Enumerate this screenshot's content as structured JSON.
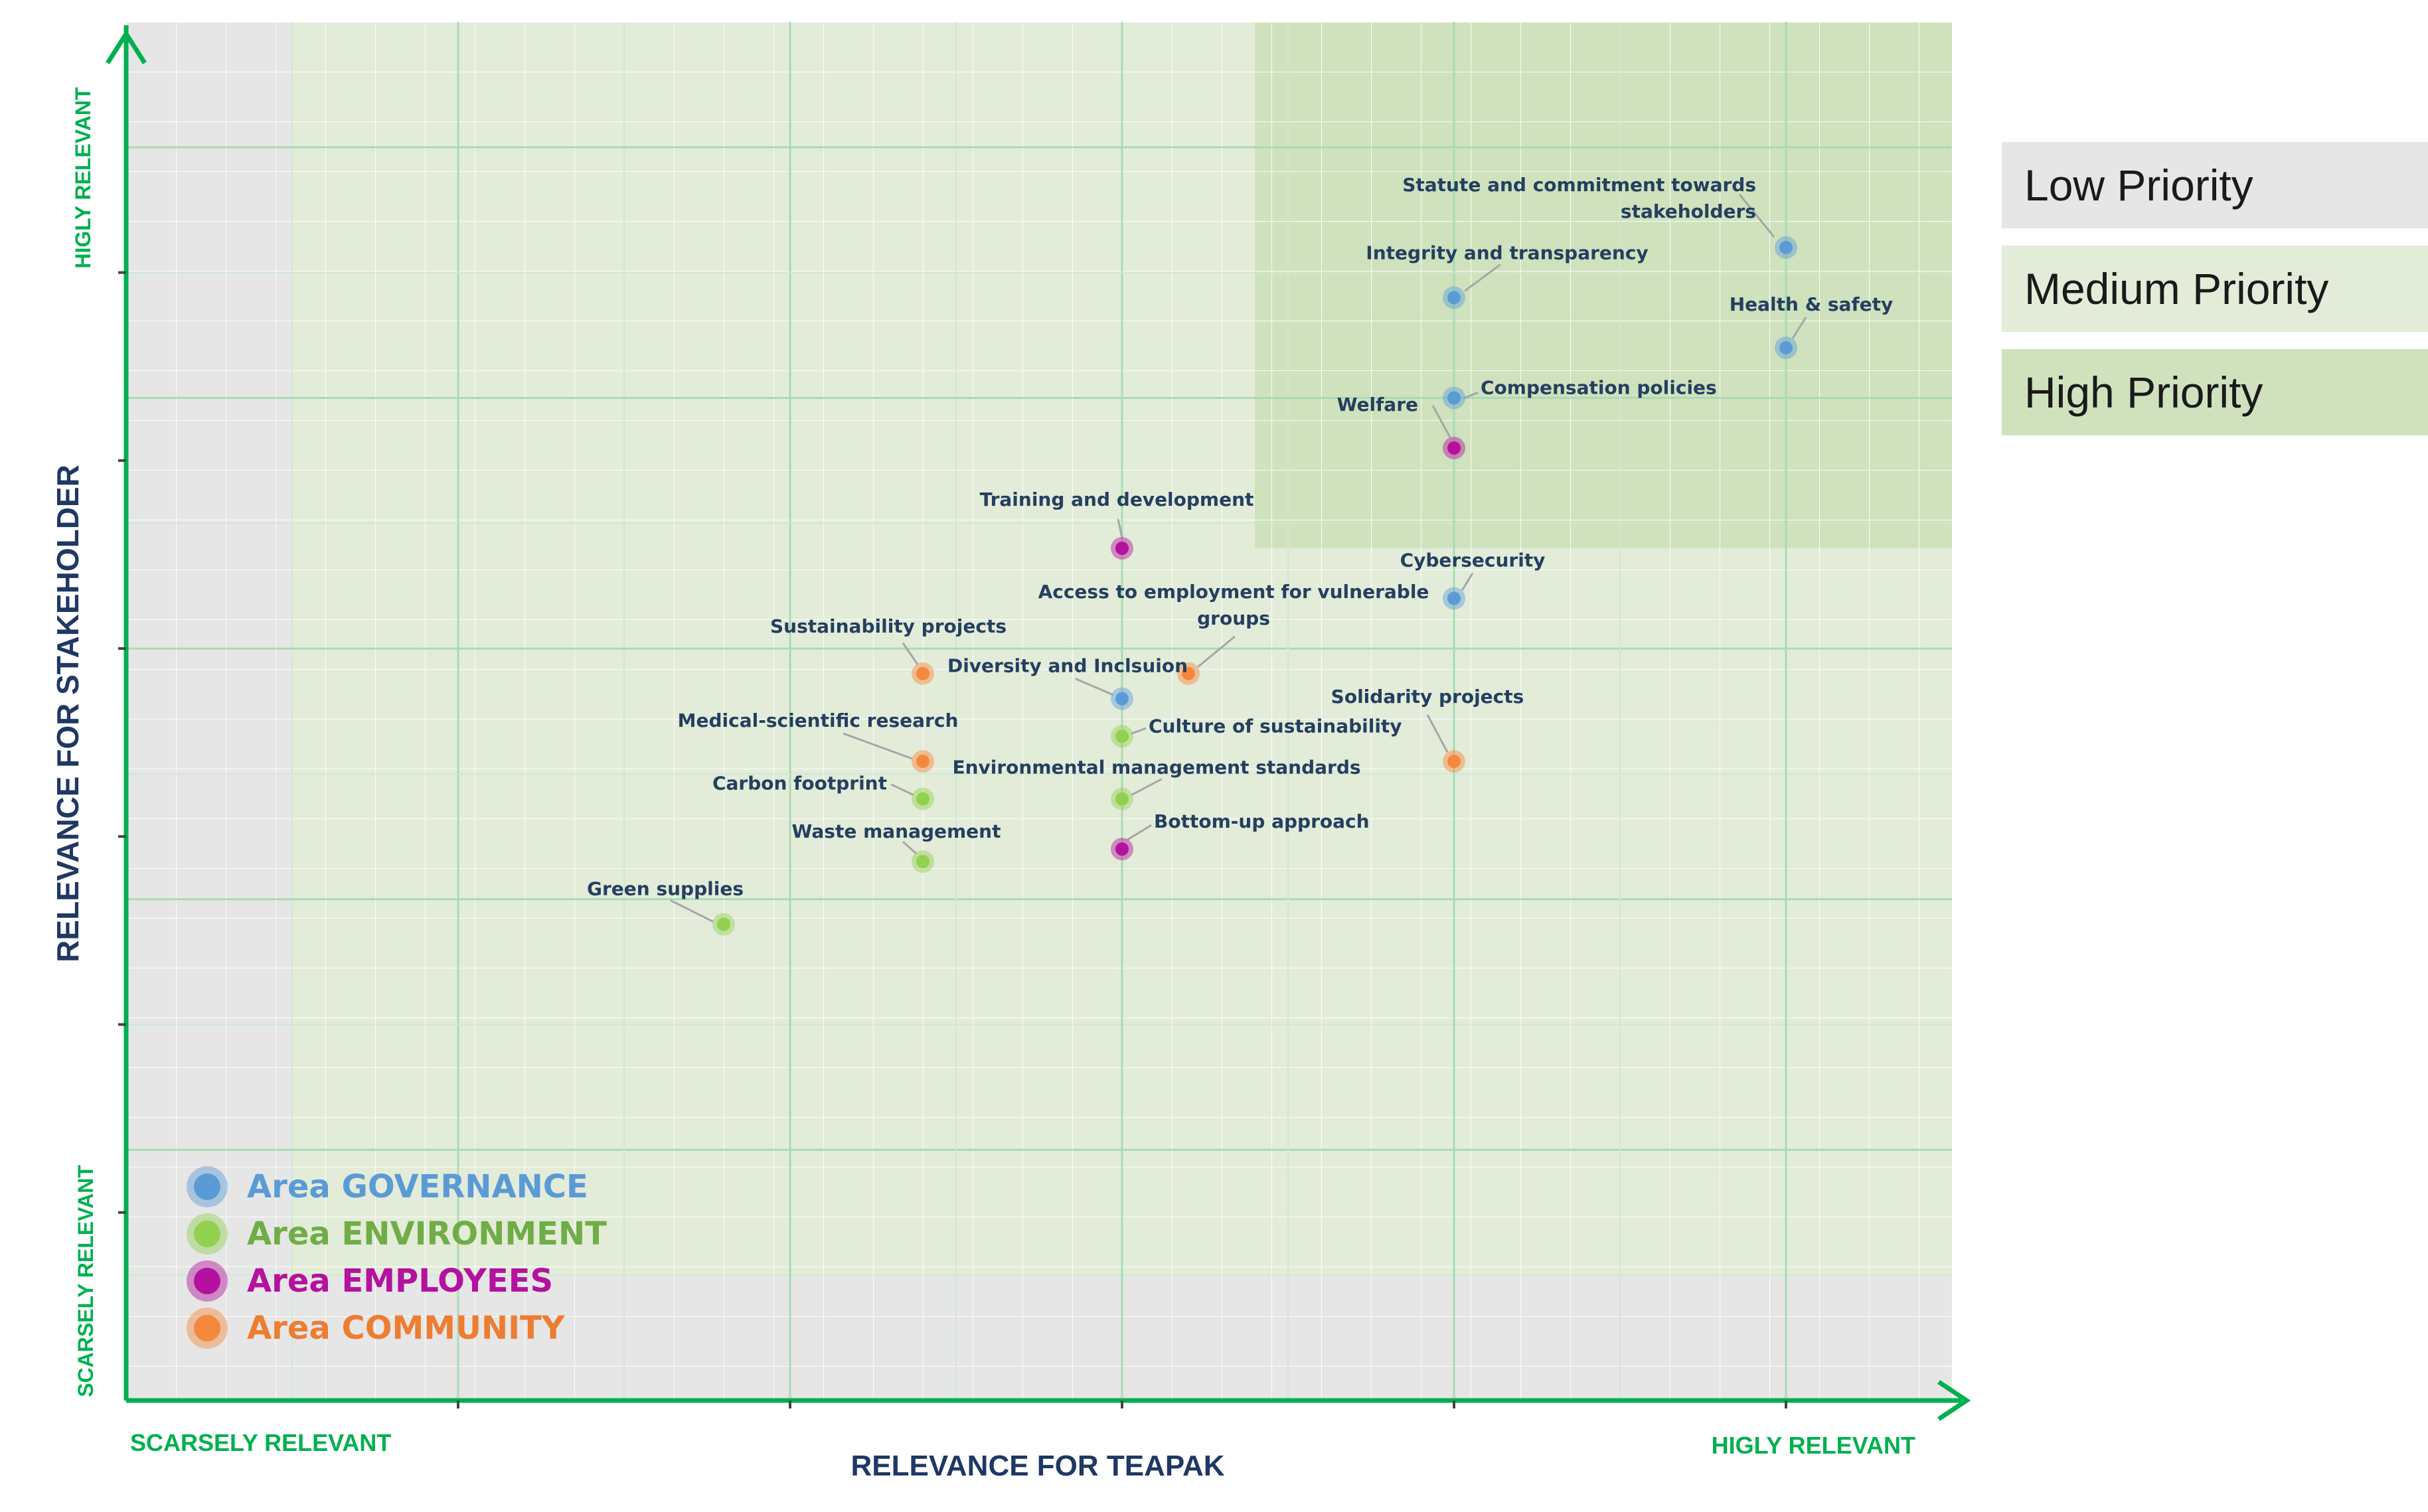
{
  "priority_legend": [
    {
      "label": "Low Priority",
      "color": "#e6e6e6"
    },
    {
      "label": "Medium Priority",
      "color": "#e3ecd9"
    },
    {
      "label": "High Priority",
      "color": "#cfe2bd"
    }
  ],
  "chart_data": {
    "type": "scatter",
    "title": "",
    "xlabel": "RELEVANCE FOR TEAPAK",
    "ylabel": "RELEVANCE FOR STAKEHOLDER",
    "x_low_label": "SCARSELY RELEVANT",
    "x_high_label": "HIGLY RELEVANT",
    "y_low_label": "SCARSELY RELEVANT",
    "y_high_label": "HIGLY RELEVANT",
    "xlim": [
      0,
      5.5
    ],
    "ylim": [
      0,
      5.5
    ],
    "grid": true,
    "legend": "bottom-left",
    "regions": [
      {
        "name": "Low Priority",
        "x": [
          0,
          5.5
        ],
        "y": [
          0,
          5.5
        ],
        "color": "#e6e6e6"
      },
      {
        "name": "Medium Priority",
        "x": [
          0.5,
          5.5
        ],
        "y": [
          0.5,
          5.5
        ],
        "color": "#e3ecd9"
      },
      {
        "name": "High Priority",
        "x": [
          3.4,
          5.5
        ],
        "y": [
          3.4,
          5.5
        ],
        "color": "#cfe2bd"
      }
    ],
    "areas": [
      {
        "name": "Area GOVERNANCE",
        "prefix": "Area ",
        "word": "GOVERNANCE",
        "color": "#5b9bd5",
        "text_color": "#5b9bd5"
      },
      {
        "name": "Area ENVIRONMENT",
        "prefix": "Area ",
        "word": "ENVIRONMENT",
        "color": "#92d050",
        "text_color": "#70ad47"
      },
      {
        "name": "Area EMPLOYEES",
        "prefix": "Area ",
        "word": "EMPLOYEES",
        "color": "#b4119e",
        "text_color": "#b4119e"
      },
      {
        "name": "Area COMMUNITY",
        "prefix": "Area ",
        "word": "COMMUNITY",
        "color": "#f4883c",
        "text_color": "#ed7d31"
      }
    ],
    "points": [
      {
        "label": "Statute and commitment towards stakeholders",
        "area": "GOVERNANCE",
        "x": 5.0,
        "y": 4.6
      },
      {
        "label": "Integrity and transparency",
        "area": "GOVERNANCE",
        "x": 4.0,
        "y": 4.4
      },
      {
        "label": "Health & safety",
        "area": "GOVERNANCE",
        "x": 5.0,
        "y": 4.2
      },
      {
        "label": "Compensation policies",
        "area": "GOVERNANCE",
        "x": 4.0,
        "y": 4.0
      },
      {
        "label": "Welfare",
        "area": "EMPLOYEES",
        "x": 4.0,
        "y": 3.8
      },
      {
        "label": "Training and development",
        "area": "EMPLOYEES",
        "x": 3.0,
        "y": 3.4
      },
      {
        "label": "Cybersecurity",
        "area": "GOVERNANCE",
        "x": 4.0,
        "y": 3.2
      },
      {
        "label": "Access to employment for vulnerable groups",
        "area": "COMMUNITY",
        "x": 3.2,
        "y": 2.9
      },
      {
        "label": "Sustainability projects",
        "area": "COMMUNITY",
        "x": 2.4,
        "y": 2.9
      },
      {
        "label": "Diversity and Inclsuion",
        "area": "GOVERNANCE",
        "x": 3.0,
        "y": 2.8
      },
      {
        "label": "Culture of sustainability",
        "area": "ENVIRONMENT",
        "x": 3.0,
        "y": 2.65
      },
      {
        "label": "Medical-scientific research",
        "area": "COMMUNITY",
        "x": 2.4,
        "y": 2.55
      },
      {
        "label": "Solidarity projects",
        "area": "COMMUNITY",
        "x": 4.0,
        "y": 2.55
      },
      {
        "label": "Carbon footprint",
        "area": "ENVIRONMENT",
        "x": 2.4,
        "y": 2.4
      },
      {
        "label": "Environmental management standards",
        "area": "ENVIRONMENT",
        "x": 3.0,
        "y": 2.4
      },
      {
        "label": "Bottom-up approach",
        "area": "EMPLOYEES",
        "x": 3.0,
        "y": 2.2
      },
      {
        "label": "Waste management",
        "area": "ENVIRONMENT",
        "x": 2.4,
        "y": 2.15
      },
      {
        "label": "Green supplies",
        "area": "ENVIRONMENT",
        "x": 1.8,
        "y": 1.9
      }
    ]
  }
}
